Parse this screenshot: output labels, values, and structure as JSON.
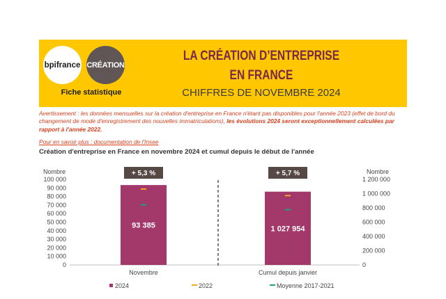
{
  "header": {
    "logo_bpi": "bpifrance",
    "logo_creation": "CRÉATION",
    "fiche": "Fiche statistique",
    "title_line1": "LA CRÉATION D’ENTREPRISE",
    "title_line2": "EN FRANCE",
    "subtitle": "CHIFFRES DE NOVEMBRE 2024",
    "colors": {
      "banner": "#ffc700",
      "title": "#7a2848",
      "warning": "#d9401d"
    }
  },
  "warning": {
    "text": "Avertissement : les données mensuelles sur la création d'entreprise en France n'étant pas disponibles pour l'année 2023 (effet de bord du changement de mode d'enregistrement des nouvelles immatriculations), ",
    "bold": "les évolutions 2024 seront exceptionnellement calculées par rapport à l'année 2022."
  },
  "link_text": "Pour en savoir plus : documentation de l'Insee",
  "chart_title": "Création d'entreprise en France en novembre 2024 et cumul depuis le début de l'année",
  "chart_data": {
    "type": "bar",
    "categories": [
      "Novembre",
      "Cumul depuis janvier"
    ],
    "left_axis": {
      "label": "Nombre",
      "ylim": [
        0,
        100000
      ],
      "ticks": [
        "0",
        "10 000",
        "20 000",
        "30 000",
        "40 000",
        "50 000",
        "60 000",
        "70 000",
        "80 000",
        "90 000",
        "100 000"
      ]
    },
    "right_axis": {
      "label": "Nombre",
      "ylim": [
        0,
        1200000
      ],
      "ticks": [
        "0",
        "200 000",
        "400 000",
        "600 000",
        "800 000",
        "1 000 000",
        "1 200 000"
      ]
    },
    "series": [
      {
        "name": "2024",
        "type": "bar",
        "color": "#a3386a",
        "values": [
          93385,
          1027954
        ],
        "labels": [
          "93 385",
          "1 027 954"
        ]
      },
      {
        "name": "2022",
        "type": "marker",
        "color": "#f5a623",
        "values": [
          88700,
          972500
        ]
      },
      {
        "name": "Moyenne 2017-2021",
        "type": "marker",
        "color": "#1aa37f",
        "values": [
          70300,
          775000
        ]
      }
    ],
    "growth_labels": [
      "+ 5,3 %",
      "+ 5,7 %"
    ],
    "legend_position": "bottom"
  }
}
